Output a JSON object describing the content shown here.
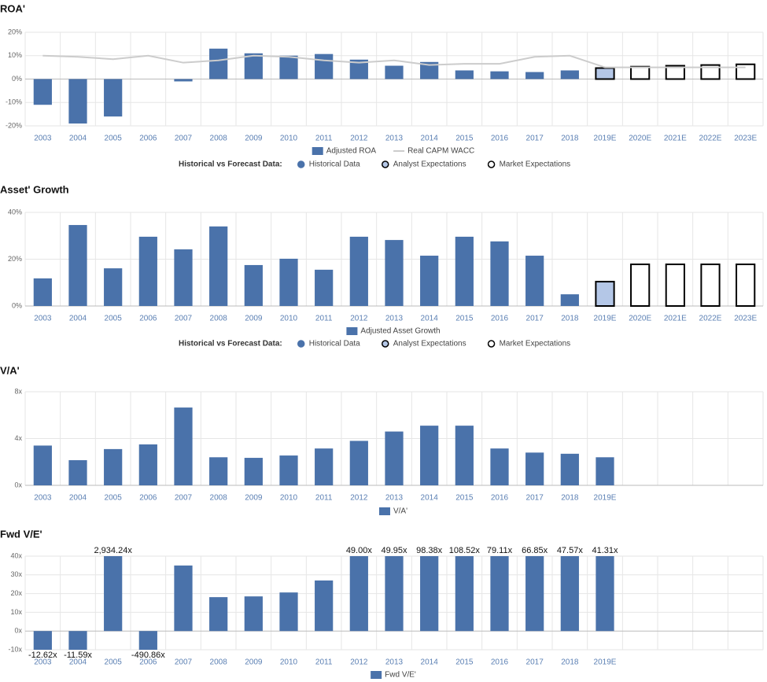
{
  "chart_data": [
    {
      "type": "bar",
      "title": "ROA'",
      "categories": [
        "2003",
        "2004",
        "2005",
        "2006",
        "2007",
        "2008",
        "2009",
        "2010",
        "2011",
        "2012",
        "2013",
        "2014",
        "2015",
        "2016",
        "2017",
        "2018",
        "2019E",
        "2020E",
        "2021E",
        "2022E",
        "2023E"
      ],
      "ylim": [
        -20,
        20
      ],
      "yticks": [
        {
          "value": -20,
          "label": "-20%"
        },
        {
          "value": -10,
          "label": "-10%"
        },
        {
          "value": 0,
          "label": "0%"
        },
        {
          "value": 10,
          "label": "10%"
        },
        {
          "value": 20,
          "label": "20%"
        }
      ],
      "grid": true,
      "series": [
        {
          "name": "Adjusted ROA",
          "type": "bar",
          "color": "#4a72aa",
          "values": [
            -11,
            -19,
            -16,
            null,
            -1,
            13,
            11,
            10,
            10.7,
            8.3,
            5.7,
            7.3,
            3.7,
            3.3,
            3,
            3.7,
            4.7,
            5.3,
            5.7,
            6,
            6.3
          ],
          "colors": [
            "#4a72aa",
            "#4a72aa",
            "#4a72aa",
            "#4a72aa",
            "#4a72aa",
            "#4a72aa",
            "#4a72aa",
            "#4a72aa",
            "#4a72aa",
            "#4a72aa",
            "#4a72aa",
            "#4a72aa",
            "#4a72aa",
            "#4a72aa",
            "#4a72aa",
            "#4a72aa",
            "#b4c7e7",
            "#ffffff",
            "#ffffff",
            "#ffffff",
            "#ffffff"
          ],
          "strokes": [
            "#4a72aa",
            "#4a72aa",
            "#4a72aa",
            "#4a72aa",
            "#4a72aa",
            "#4a72aa",
            "#4a72aa",
            "#4a72aa",
            "#4a72aa",
            "#4a72aa",
            "#4a72aa",
            "#4a72aa",
            "#4a72aa",
            "#4a72aa",
            "#4a72aa",
            "#4a72aa",
            "#000000",
            "#000000",
            "#000000",
            "#000000",
            "#000000"
          ]
        },
        {
          "name": "Real CAPM WACC",
          "type": "line",
          "color": "#cccccc",
          "values": [
            10,
            9.5,
            8.5,
            10,
            7,
            8,
            10,
            9.5,
            8,
            7,
            8,
            6,
            6.5,
            6.5,
            9.5,
            10,
            5,
            5,
            5,
            5,
            5
          ]
        }
      ],
      "forecast_legend": {
        "title": "Historical vs Forecast Data:",
        "items": [
          {
            "name": "Historical Data",
            "color": "#4a72aa",
            "edge": "#4a72aa"
          },
          {
            "name": "Analyst Expectations",
            "color": "#b4c7e7",
            "edge": "#000000"
          },
          {
            "name": "Market Expectations",
            "color": "#ffffff",
            "edge": "#000000"
          }
        ]
      }
    },
    {
      "type": "bar",
      "title": "Asset' Growth",
      "categories": [
        "2003",
        "2004",
        "2005",
        "2006",
        "2007",
        "2008",
        "2009",
        "2010",
        "2011",
        "2012",
        "2013",
        "2014",
        "2015",
        "2016",
        "2017",
        "2018",
        "2019E",
        "2020E",
        "2021E",
        "2022E",
        "2023E"
      ],
      "ylim": [
        0,
        40
      ],
      "yticks": [
        {
          "value": 0,
          "label": "0%"
        },
        {
          "value": 20,
          "label": "20%"
        },
        {
          "value": 40,
          "label": "40%"
        }
      ],
      "grid": true,
      "series": [
        {
          "name": "Adjusted Asset Growth",
          "type": "bar",
          "color": "#4a72aa",
          "values": [
            11.8,
            34.6,
            16.1,
            29.6,
            24.2,
            34,
            17.5,
            20.2,
            15.5,
            29.6,
            28.2,
            21.5,
            29.6,
            27.6,
            21.5,
            5,
            10.4,
            17.8,
            17.8,
            17.8,
            17.8
          ],
          "colors": [
            "#4a72aa",
            "#4a72aa",
            "#4a72aa",
            "#4a72aa",
            "#4a72aa",
            "#4a72aa",
            "#4a72aa",
            "#4a72aa",
            "#4a72aa",
            "#4a72aa",
            "#4a72aa",
            "#4a72aa",
            "#4a72aa",
            "#4a72aa",
            "#4a72aa",
            "#4a72aa",
            "#b4c7e7",
            "#ffffff",
            "#ffffff",
            "#ffffff",
            "#ffffff"
          ],
          "strokes": [
            "#4a72aa",
            "#4a72aa",
            "#4a72aa",
            "#4a72aa",
            "#4a72aa",
            "#4a72aa",
            "#4a72aa",
            "#4a72aa",
            "#4a72aa",
            "#4a72aa",
            "#4a72aa",
            "#4a72aa",
            "#4a72aa",
            "#4a72aa",
            "#4a72aa",
            "#4a72aa",
            "#000000",
            "#000000",
            "#000000",
            "#000000",
            "#000000"
          ]
        }
      ],
      "forecast_legend": {
        "title": "Historical vs Forecast Data:",
        "items": [
          {
            "name": "Historical Data",
            "color": "#4a72aa",
            "edge": "#4a72aa"
          },
          {
            "name": "Analyst Expectations",
            "color": "#b4c7e7",
            "edge": "#000000"
          },
          {
            "name": "Market Expectations",
            "color": "#ffffff",
            "edge": "#000000"
          }
        ]
      }
    },
    {
      "type": "bar",
      "title": "V/A'",
      "categories": [
        "2003",
        "2004",
        "2005",
        "2006",
        "2007",
        "2008",
        "2009",
        "2010",
        "2011",
        "2012",
        "2013",
        "2014",
        "2015",
        "2016",
        "2017",
        "2018",
        "2019E",
        null,
        null,
        null,
        null
      ],
      "ylim": [
        0,
        8
      ],
      "yticks": [
        {
          "value": 0,
          "label": "0x"
        },
        {
          "value": 4,
          "label": "4x"
        },
        {
          "value": 8,
          "label": "8x"
        }
      ],
      "grid": true,
      "series": [
        {
          "name": "V/A'",
          "type": "bar",
          "color": "#4a72aa",
          "values": [
            3.4,
            2.15,
            3.1,
            3.5,
            6.65,
            2.4,
            2.35,
            2.55,
            3.15,
            3.8,
            4.6,
            5.1,
            5.1,
            3.15,
            2.8,
            2.7,
            2.4,
            null,
            null,
            null,
            null
          ]
        }
      ]
    },
    {
      "type": "bar",
      "title": "Fwd V/E'",
      "categories": [
        "2003",
        "2004",
        "2005",
        "2006",
        "2007",
        "2008",
        "2009",
        "2010",
        "2011",
        "2012",
        "2013",
        "2014",
        "2015",
        "2016",
        "2017",
        "2018",
        "2019E",
        null,
        null,
        null,
        null
      ],
      "ylim": [
        -10,
        40
      ],
      "yticks": [
        {
          "value": -10,
          "label": "-10x"
        },
        {
          "value": 0,
          "label": "0x"
        },
        {
          "value": 10,
          "label": "10x"
        },
        {
          "value": 20,
          "label": "20x"
        },
        {
          "value": 30,
          "label": "30x"
        },
        {
          "value": 40,
          "label": "40x"
        }
      ],
      "grid": true,
      "series": [
        {
          "name": "Fwd V/E'",
          "type": "bar",
          "color": "#4a72aa",
          "values": [
            -12.62,
            -11.59,
            2934.24,
            -490.86,
            35,
            18.1,
            18.5,
            20.6,
            27,
            49.0,
            49.95,
            98.38,
            108.52,
            79.11,
            66.85,
            47.57,
            41.31,
            null,
            null,
            null,
            null
          ],
          "value_labels": [
            "-12.62x",
            "-11.59x",
            "2,934.24x",
            "-490.86x",
            null,
            null,
            null,
            null,
            null,
            "49.00x",
            "49.95x",
            "98.38x",
            "108.52x",
            "79.11x",
            "66.85x",
            "47.57x",
            "41.31x",
            null,
            null,
            null,
            null
          ]
        }
      ]
    }
  ]
}
